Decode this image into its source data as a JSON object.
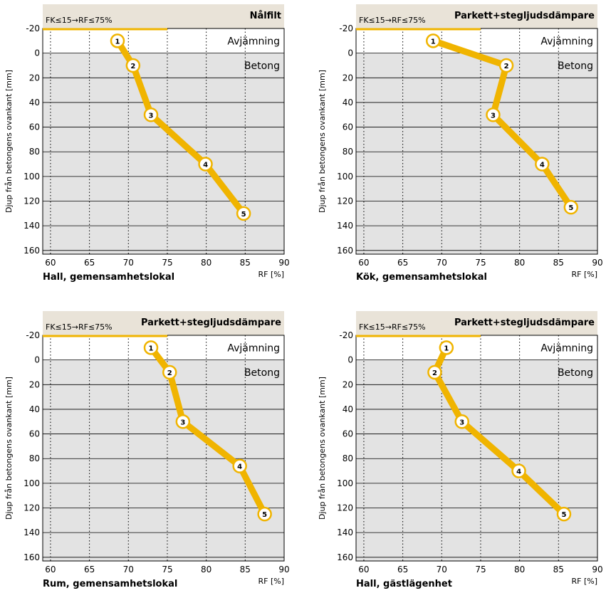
{
  "colors": {
    "header_bg": "#e9e3d8",
    "plot_bg": "#e3e3e3",
    "top_band_bg": "#ffffff",
    "line": "#f0b400",
    "limit_line": "#f0b400",
    "marker_fill": "#ffffff",
    "marker_stroke": "#f0b400",
    "text": "#000000"
  },
  "chart_data": [
    {
      "type": "line",
      "header_note": "FK≤15→RF≤75%",
      "title": "Nålfilt",
      "subtitle": "Hall, gemensamhetslokal",
      "xlabel": "RF [%]",
      "ylabel": "Djup från betongens ovankant [mm]",
      "xlim": [
        59,
        90
      ],
      "ylim": [
        -20,
        163
      ],
      "xticks": [
        60,
        65,
        70,
        75,
        80,
        85,
        90
      ],
      "yticks": [
        -20,
        0,
        20,
        40,
        60,
        80,
        100,
        120,
        140,
        160
      ],
      "y_reversed": true,
      "limit_rf": 75,
      "layer_labels": [
        "Avjämning",
        "Betong"
      ],
      "points": [
        {
          "label": "1",
          "x": 68.6,
          "y": -10
        },
        {
          "label": "2",
          "x": 70.6,
          "y": 10
        },
        {
          "label": "3",
          "x": 72.9,
          "y": 50
        },
        {
          "label": "4",
          "x": 79.9,
          "y": 90
        },
        {
          "label": "5",
          "x": 84.8,
          "y": 130
        }
      ]
    },
    {
      "type": "line",
      "header_note": "FK≤15→RF≤75%",
      "title": "Parkett+stegljudsdämpare",
      "subtitle": "Kök, gemensamhetslokal",
      "xlabel": "RF [%]",
      "ylabel": "Djup från betongens ovankant [mm]",
      "xlim": [
        59,
        90
      ],
      "ylim": [
        -20,
        163
      ],
      "xticks": [
        60,
        65,
        70,
        75,
        80,
        85,
        90
      ],
      "yticks": [
        -20,
        0,
        20,
        40,
        60,
        80,
        100,
        120,
        140,
        160
      ],
      "y_reversed": true,
      "limit_rf": 75,
      "layer_labels": [
        "Avjämning",
        "Betong"
      ],
      "points": [
        {
          "label": "1",
          "x": 68.9,
          "y": -10
        },
        {
          "label": "2",
          "x": 78.3,
          "y": 10
        },
        {
          "label": "3",
          "x": 76.6,
          "y": 50
        },
        {
          "label": "4",
          "x": 82.9,
          "y": 90
        },
        {
          "label": "5",
          "x": 86.6,
          "y": 125
        }
      ]
    },
    {
      "type": "line",
      "header_note": "FK≤15→RF≤75%",
      "title": "Parkett+stegljudsdämpare",
      "subtitle": "Rum, gemensamhetslokal",
      "xlabel": "RF [%]",
      "ylabel": "Djup från betongens ovankant [mm]",
      "xlim": [
        59,
        90
      ],
      "ylim": [
        -20,
        163
      ],
      "xticks": [
        60,
        65,
        70,
        75,
        80,
        85,
        90
      ],
      "yticks": [
        -20,
        0,
        20,
        40,
        60,
        80,
        100,
        120,
        140,
        160
      ],
      "y_reversed": true,
      "limit_rf": 75,
      "layer_labels": [
        "Avjämning",
        "Betong"
      ],
      "points": [
        {
          "label": "1",
          "x": 72.9,
          "y": -10
        },
        {
          "label": "2",
          "x": 75.3,
          "y": 10
        },
        {
          "label": "3",
          "x": 77.0,
          "y": 50
        },
        {
          "label": "4",
          "x": 84.3,
          "y": 86
        },
        {
          "label": "5",
          "x": 87.5,
          "y": 125
        }
      ]
    },
    {
      "type": "line",
      "header_note": "FK≤15→RF≤75%",
      "title": "Parkett+stegljudsdämpare",
      "subtitle": "Hall, gästlägenhet",
      "xlabel": "RF [%]",
      "ylabel": "Djup från betongens ovankant [mm]",
      "xlim": [
        59,
        90
      ],
      "ylim": [
        -20,
        163
      ],
      "xticks": [
        60,
        65,
        70,
        75,
        80,
        85,
        90
      ],
      "yticks": [
        -20,
        0,
        20,
        40,
        60,
        80,
        100,
        120,
        140,
        160
      ],
      "y_reversed": true,
      "limit_rf": 75,
      "layer_labels": [
        "Avjämning",
        "Betong"
      ],
      "points": [
        {
          "label": "1",
          "x": 70.6,
          "y": -10
        },
        {
          "label": "2",
          "x": 69.1,
          "y": 10
        },
        {
          "label": "3",
          "x": 72.6,
          "y": 50
        },
        {
          "label": "4",
          "x": 79.9,
          "y": 90
        },
        {
          "label": "5",
          "x": 85.7,
          "y": 125
        }
      ]
    }
  ]
}
